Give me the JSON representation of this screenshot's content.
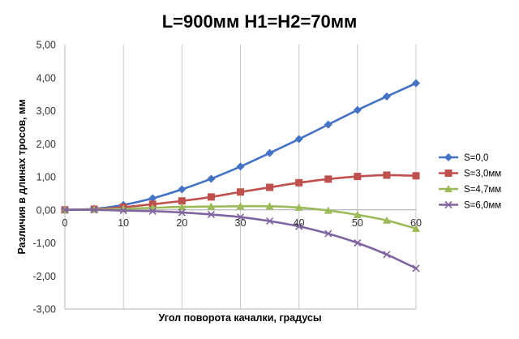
{
  "chart_data": {
    "type": "line",
    "title": "L=900мм   H1=H2=70мм",
    "xlabel": "Угол поворота качалки, градусы",
    "ylabel": "Различия в длинах тросов, мм",
    "xlim": [
      0,
      60
    ],
    "ylim": [
      -3,
      5
    ],
    "x_ticks": [
      0,
      10,
      20,
      30,
      40,
      50,
      60
    ],
    "y_ticks": [
      -3,
      -2,
      -1,
      0,
      1,
      2,
      3,
      4,
      5
    ],
    "x_tick_labels": [
      "0",
      "10",
      "20",
      "30",
      "40",
      "50",
      "60"
    ],
    "y_tick_labels": [
      "-3,00",
      "-2,00",
      "-1,00",
      "0,00",
      "1,00",
      "2,00",
      "3,00",
      "4,00",
      "5,00"
    ],
    "grid": "vertical",
    "legend_position": "right",
    "x": [
      0,
      5,
      10,
      15,
      20,
      25,
      30,
      35,
      40,
      45,
      50,
      55,
      60
    ],
    "series": [
      {
        "name": "S=0,0",
        "color": "#4472C4",
        "marker": "diamond",
        "values": [
          0,
          0.03,
          0.15,
          0.35,
          0.62,
          0.94,
          1.31,
          1.72,
          2.14,
          2.58,
          3.02,
          3.43,
          3.83
        ]
      },
      {
        "name": "S=3,0мм",
        "color": "#C0504D",
        "marker": "square",
        "values": [
          0,
          0.02,
          0.08,
          0.17,
          0.27,
          0.39,
          0.54,
          0.68,
          0.82,
          0.93,
          1.01,
          1.05,
          1.03
        ]
      },
      {
        "name": "S=4,7мм",
        "color": "#9BBB59",
        "marker": "triangle",
        "values": [
          0,
          0.01,
          0.03,
          0.06,
          0.09,
          0.1,
          0.11,
          0.11,
          0.07,
          -0.02,
          -0.15,
          -0.32,
          -0.57
        ]
      },
      {
        "name": "S=6,0мм",
        "color": "#8064A2",
        "marker": "x",
        "values": [
          0,
          0,
          -0.02,
          -0.04,
          -0.08,
          -0.14,
          -0.22,
          -0.34,
          -0.5,
          -0.72,
          -1.0,
          -1.35,
          -1.77
        ]
      }
    ]
  }
}
